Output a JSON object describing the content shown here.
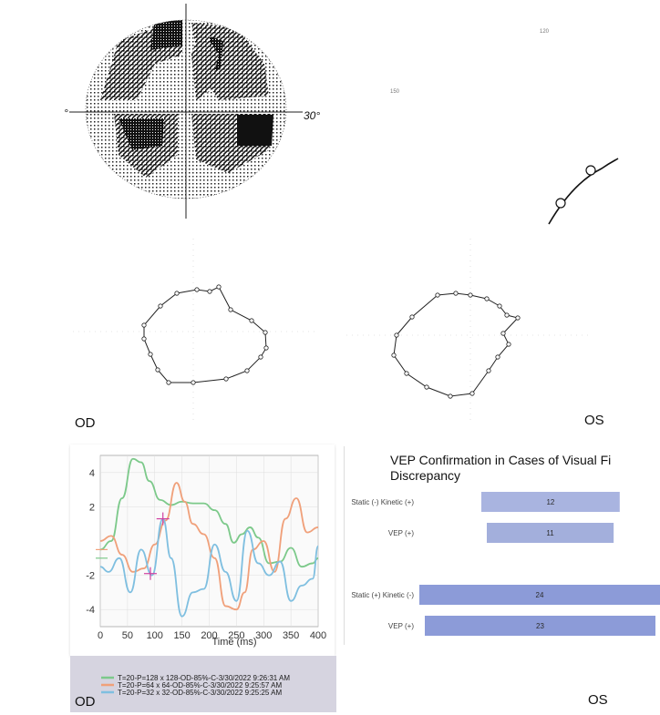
{
  "static_field": {
    "label_left": "°",
    "label_right": "30°"
  },
  "kinetic_field": {
    "iso_outer": "120",
    "iso_inner": "150"
  },
  "eye_labels": {
    "od_top": "OD",
    "os_top": "OS",
    "od_bottom": "OD",
    "os_bottom": "OS"
  },
  "vep_chart": {
    "colors": {
      "green": "#7cc98a",
      "orange": "#f0a07a",
      "blue": "#7fbfe0",
      "marker": "#d040a0"
    },
    "legend": [
      {
        "label": "T=20-P=128 x 128-OD-85%-C-3/30/2022 9:26:31 AM",
        "color": "#7cc98a"
      },
      {
        "label": "T=20-P=64 x 64-OD-85%-C-3/30/2022 9:25:57 AM",
        "color": "#f0a07a"
      },
      {
        "label": "T=20-P=32 x 32-OD-85%-C-3/30/2022 9:25:25 AM",
        "color": "#7fbfe0"
      }
    ]
  },
  "chart_data": [
    {
      "type": "line",
      "title": "",
      "xlabel": "Time (ms)",
      "ylabel": "",
      "xlim": [
        0,
        400
      ],
      "ylim": [
        -5,
        5
      ],
      "x_ticks": [
        0,
        50,
        100,
        150,
        200,
        250,
        300,
        350,
        400
      ],
      "y_ticks": [
        4,
        2,
        -2,
        -4
      ],
      "series": [
        {
          "name": "T=20-P=128 x 128-OD-85%-C-3/30/2022 9:26:31 AM",
          "x": [
            0,
            20,
            40,
            60,
            75,
            90,
            110,
            130,
            150,
            170,
            190,
            210,
            230,
            245,
            260,
            275,
            290,
            310,
            330,
            350,
            370,
            390,
            400
          ],
          "y": [
            -0.5,
            0,
            2.5,
            4.8,
            4.6,
            3.5,
            2.4,
            2.1,
            2.3,
            2.2,
            2.2,
            1.8,
            1.0,
            -0.1,
            0.4,
            0.8,
            0.2,
            -1.3,
            -1.2,
            -0.4,
            -1.5,
            -1.3,
            -1.0
          ]
        },
        {
          "name": "T=20-P=64 x 64-OD-85%-C-3/30/2022 9:25:57 AM",
          "x": [
            0,
            20,
            40,
            60,
            80,
            100,
            120,
            140,
            155,
            170,
            190,
            210,
            230,
            250,
            265,
            280,
            300,
            320,
            340,
            360,
            380,
            400
          ],
          "y": [
            0,
            0.3,
            -0.8,
            -1.8,
            -1.6,
            -0.2,
            1.2,
            3.4,
            2.3,
            1.0,
            0.4,
            -1.0,
            -3.8,
            -4.0,
            -3.0,
            -0.5,
            0.0,
            -1.8,
            1.3,
            2.5,
            0.5,
            0.8
          ]
        },
        {
          "name": "T=20-P=32 x 32-OD-85%-C-3/30/2022 9:25:25 AM",
          "x": [
            0,
            15,
            35,
            55,
            75,
            95,
            115,
            130,
            150,
            170,
            190,
            210,
            230,
            250,
            270,
            290,
            310,
            330,
            350,
            370,
            390,
            400
          ],
          "y": [
            -1.5,
            -1.8,
            -1.0,
            -3.0,
            -0.5,
            -2.0,
            1.3,
            -1.0,
            -4.4,
            -3.0,
            -2.8,
            -0.2,
            -1.8,
            -3.5,
            0.6,
            -1.3,
            -2.0,
            -1.2,
            -3.5,
            -2.6,
            -2.2,
            -0.3
          ]
        }
      ],
      "markers": [
        {
          "x": 115,
          "y": 1.3
        },
        {
          "x": 92,
          "y": -1.9
        }
      ]
    },
    {
      "type": "bar",
      "title": "VEP Confirmation in Cases of Visual Fi\nDiscrepancy",
      "orientation": "horizontal",
      "categories": [
        "Static (-) Kinetic (+)",
        "VEP (+)",
        "Static (+) Kinetic (-)",
        "VEP (+)"
      ],
      "values": [
        12,
        11,
        24,
        23
      ],
      "colors": [
        "#a9b4e0",
        "#a3afdc",
        "#8c9bd8",
        "#8c9bd8"
      ]
    }
  ]
}
